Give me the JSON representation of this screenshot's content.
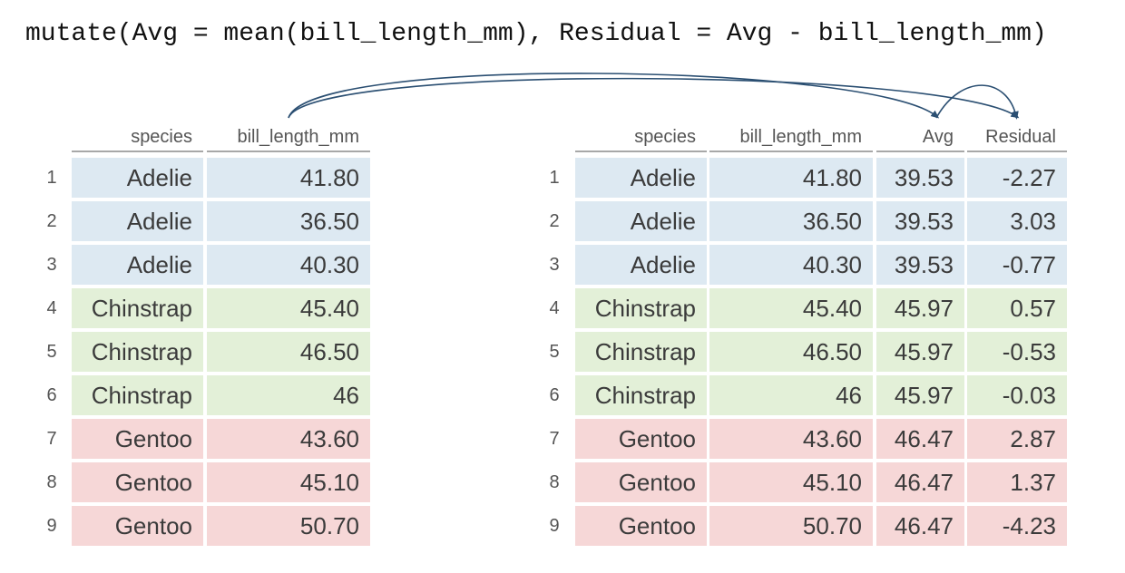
{
  "code_line": "mutate(Avg = mean(bill_length_mm), Residual = Avg - bill_length_mm)",
  "left_table": {
    "columns": [
      "species",
      "bill_length_mm"
    ],
    "rows": [
      {
        "n": "1",
        "species": "Adelie",
        "bill": "41.80"
      },
      {
        "n": "2",
        "species": "Adelie",
        "bill": "36.50"
      },
      {
        "n": "3",
        "species": "Adelie",
        "bill": "40.30"
      },
      {
        "n": "4",
        "species": "Chinstrap",
        "bill": "45.40"
      },
      {
        "n": "5",
        "species": "Chinstrap",
        "bill": "46.50"
      },
      {
        "n": "6",
        "species": "Chinstrap",
        "bill": "46"
      },
      {
        "n": "7",
        "species": "Gentoo",
        "bill": "43.60"
      },
      {
        "n": "8",
        "species": "Gentoo",
        "bill": "45.10"
      },
      {
        "n": "9",
        "species": "Gentoo",
        "bill": "50.70"
      }
    ]
  },
  "right_table": {
    "columns": [
      "species",
      "bill_length_mm",
      "Avg",
      "Residual"
    ],
    "rows": [
      {
        "n": "1",
        "species": "Adelie",
        "bill": "41.80",
        "avg": "39.53",
        "residual": "-2.27"
      },
      {
        "n": "2",
        "species": "Adelie",
        "bill": "36.50",
        "avg": "39.53",
        "residual": "3.03"
      },
      {
        "n": "3",
        "species": "Adelie",
        "bill": "40.30",
        "avg": "39.53",
        "residual": "-0.77"
      },
      {
        "n": "4",
        "species": "Chinstrap",
        "bill": "45.40",
        "avg": "45.97",
        "residual": "0.57"
      },
      {
        "n": "5",
        "species": "Chinstrap",
        "bill": "46.50",
        "avg": "45.97",
        "residual": "-0.53"
      },
      {
        "n": "6",
        "species": "Chinstrap",
        "bill": "46",
        "avg": "45.97",
        "residual": "-0.03"
      },
      {
        "n": "7",
        "species": "Gentoo",
        "bill": "43.60",
        "avg": "46.47",
        "residual": "2.87"
      },
      {
        "n": "8",
        "species": "Gentoo",
        "bill": "45.10",
        "avg": "46.47",
        "residual": "1.37"
      },
      {
        "n": "9",
        "species": "Gentoo",
        "bill": "50.70",
        "avg": "46.47",
        "residual": "-4.23"
      }
    ]
  },
  "colors": {
    "Adelie": "#dde9f2",
    "Chinstrap": "#e3f0d8",
    "Gentoo": "#f6d7d7",
    "arrow": "#2b4f72"
  }
}
